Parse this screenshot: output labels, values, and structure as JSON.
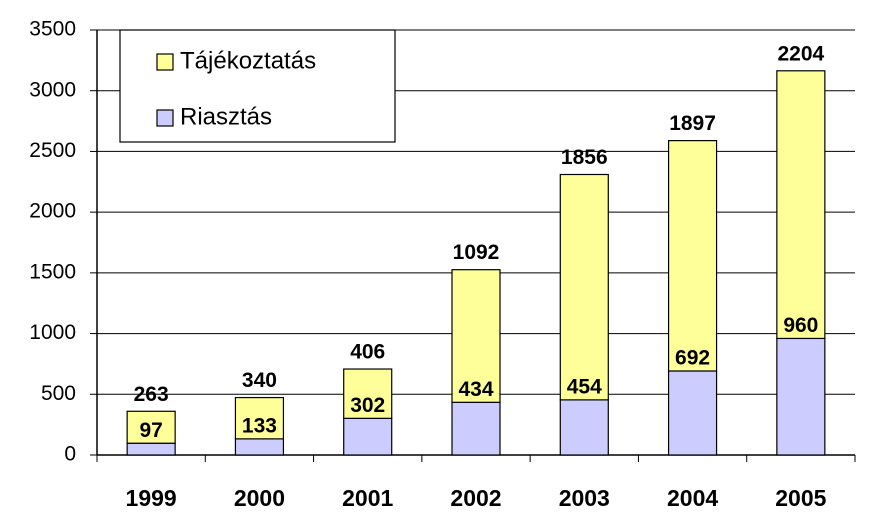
{
  "chart_data": {
    "type": "stacked_bar",
    "categories": [
      "1999",
      "2000",
      "2001",
      "2002",
      "2003",
      "2004",
      "2005"
    ],
    "series": [
      {
        "name": "Riasztás",
        "color": "#ccccff",
        "values": [
          97,
          133,
          302,
          434,
          454,
          692,
          960
        ]
      },
      {
        "name": "Tájékoztatás",
        "color": "#ffff99",
        "values": [
          263,
          340,
          406,
          1092,
          1856,
          1897,
          2204
        ]
      }
    ],
    "ylim": [
      0,
      3500
    ],
    "yticks": [
      0,
      500,
      1000,
      1500,
      2000,
      2500,
      3000,
      3500
    ],
    "grid": true
  }
}
